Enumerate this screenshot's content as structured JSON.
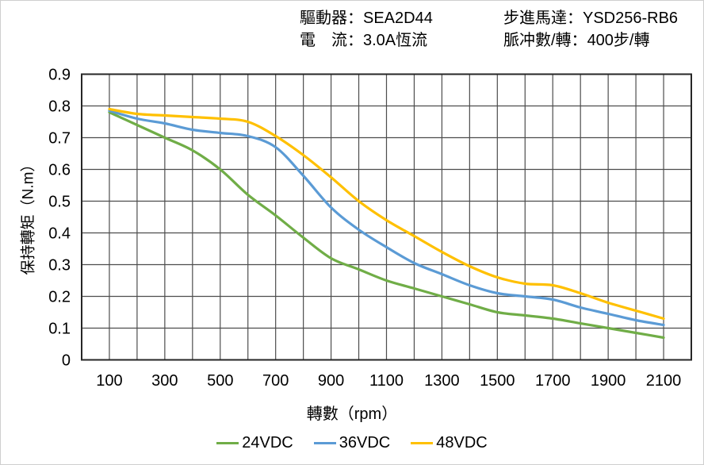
{
  "header": {
    "driver_label": "驅動器：",
    "driver_value": "SEA2D44",
    "current_label": "電　流：",
    "current_value": "3.0A恆流",
    "motor_label": "步進馬達：",
    "motor_value": "YSD256-RB6",
    "pulse_label": "脈冲數/轉：",
    "pulse_value": "400步/轉"
  },
  "chart_data": {
    "type": "line",
    "title": "",
    "xlabel": "轉數（rpm）",
    "ylabel": "保持轉矩（N.m）",
    "xlim": [
      0,
      2200
    ],
    "ylim": [
      0,
      0.9
    ],
    "x_tick_labels": [
      100,
      300,
      500,
      700,
      900,
      1100,
      1300,
      1500,
      1700,
      1900,
      2100
    ],
    "y_tick_labels": [
      0,
      0.1,
      0.2,
      0.3,
      0.4,
      0.5,
      0.6,
      0.7,
      0.8,
      0.9
    ],
    "grid": {
      "x_step": 100,
      "y_step": 0.1,
      "line_color": "#4d4d4d",
      "border_color": "#262626"
    },
    "legend_position": "bottom",
    "x": [
      100,
      200,
      300,
      400,
      500,
      600,
      700,
      800,
      900,
      1000,
      1100,
      1200,
      1300,
      1400,
      1500,
      1600,
      1700,
      1800,
      1900,
      2000,
      2100
    ],
    "series": [
      {
        "name": "24VDC",
        "color": "#70AD47",
        "values": [
          0.78,
          0.74,
          0.7,
          0.66,
          0.6,
          0.52,
          0.455,
          0.385,
          0.32,
          0.285,
          0.25,
          0.225,
          0.2,
          0.175,
          0.15,
          0.14,
          0.13,
          0.115,
          0.1,
          0.085,
          0.07
        ]
      },
      {
        "name": "36VDC",
        "color": "#5B9BD5",
        "values": [
          0.785,
          0.76,
          0.745,
          0.725,
          0.715,
          0.705,
          0.67,
          0.58,
          0.48,
          0.41,
          0.355,
          0.305,
          0.27,
          0.235,
          0.21,
          0.2,
          0.19,
          0.165,
          0.145,
          0.125,
          0.11
        ]
      },
      {
        "name": "48VDC",
        "color": "#FFC000",
        "values": [
          0.79,
          0.775,
          0.77,
          0.765,
          0.76,
          0.75,
          0.705,
          0.645,
          0.575,
          0.5,
          0.44,
          0.39,
          0.34,
          0.295,
          0.26,
          0.24,
          0.235,
          0.21,
          0.18,
          0.155,
          0.13
        ]
      }
    ]
  }
}
